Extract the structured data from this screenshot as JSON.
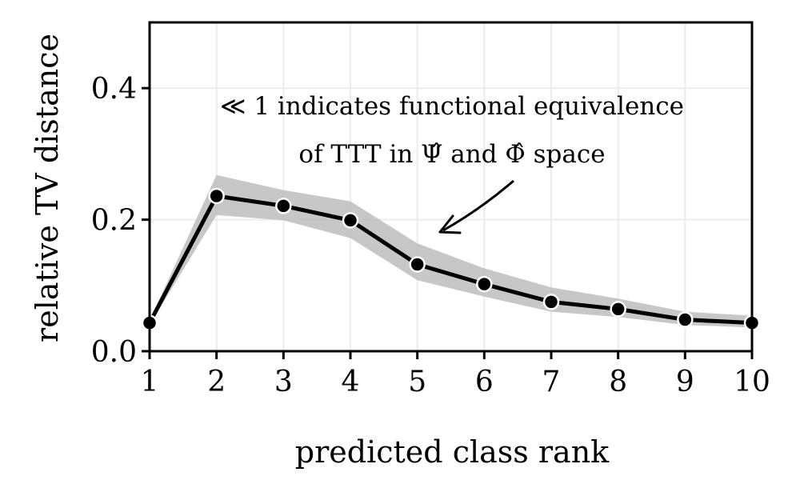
{
  "chart_data": {
    "type": "line",
    "title": "",
    "xlabel": "predicted class rank",
    "ylabel": "relative TV distance",
    "x": [
      1,
      2,
      3,
      4,
      5,
      6,
      7,
      8,
      9,
      10
    ],
    "series": [
      {
        "values": [
          0.043,
          0.236,
          0.221,
          0.199,
          0.132,
          0.102,
          0.075,
          0.064,
          0.048,
          0.043
        ],
        "band_lower": [
          0.04,
          0.207,
          0.199,
          0.172,
          0.108,
          0.083,
          0.06,
          0.052,
          0.04,
          0.036
        ],
        "band_upper": [
          0.047,
          0.268,
          0.245,
          0.228,
          0.164,
          0.126,
          0.097,
          0.08,
          0.06,
          0.054
        ]
      }
    ],
    "xlim": [
      1,
      10
    ],
    "ylim": [
      0,
      0.5
    ],
    "xticks": [
      "1",
      "2",
      "3",
      "4",
      "5",
      "6",
      "7",
      "8",
      "9",
      "10"
    ],
    "yticks": [
      "0.0",
      "0.2",
      "0.4"
    ],
    "grid": true,
    "annotation": {
      "line1": "≪ 1 indicates functional equivalence",
      "line2": "of TTT in Ψ̂ and Φ̂ space"
    },
    "colors": {
      "line": "#000000",
      "band": "#bdbdbd",
      "marker_edge": "#ffffff",
      "grid": "#ececec"
    }
  }
}
